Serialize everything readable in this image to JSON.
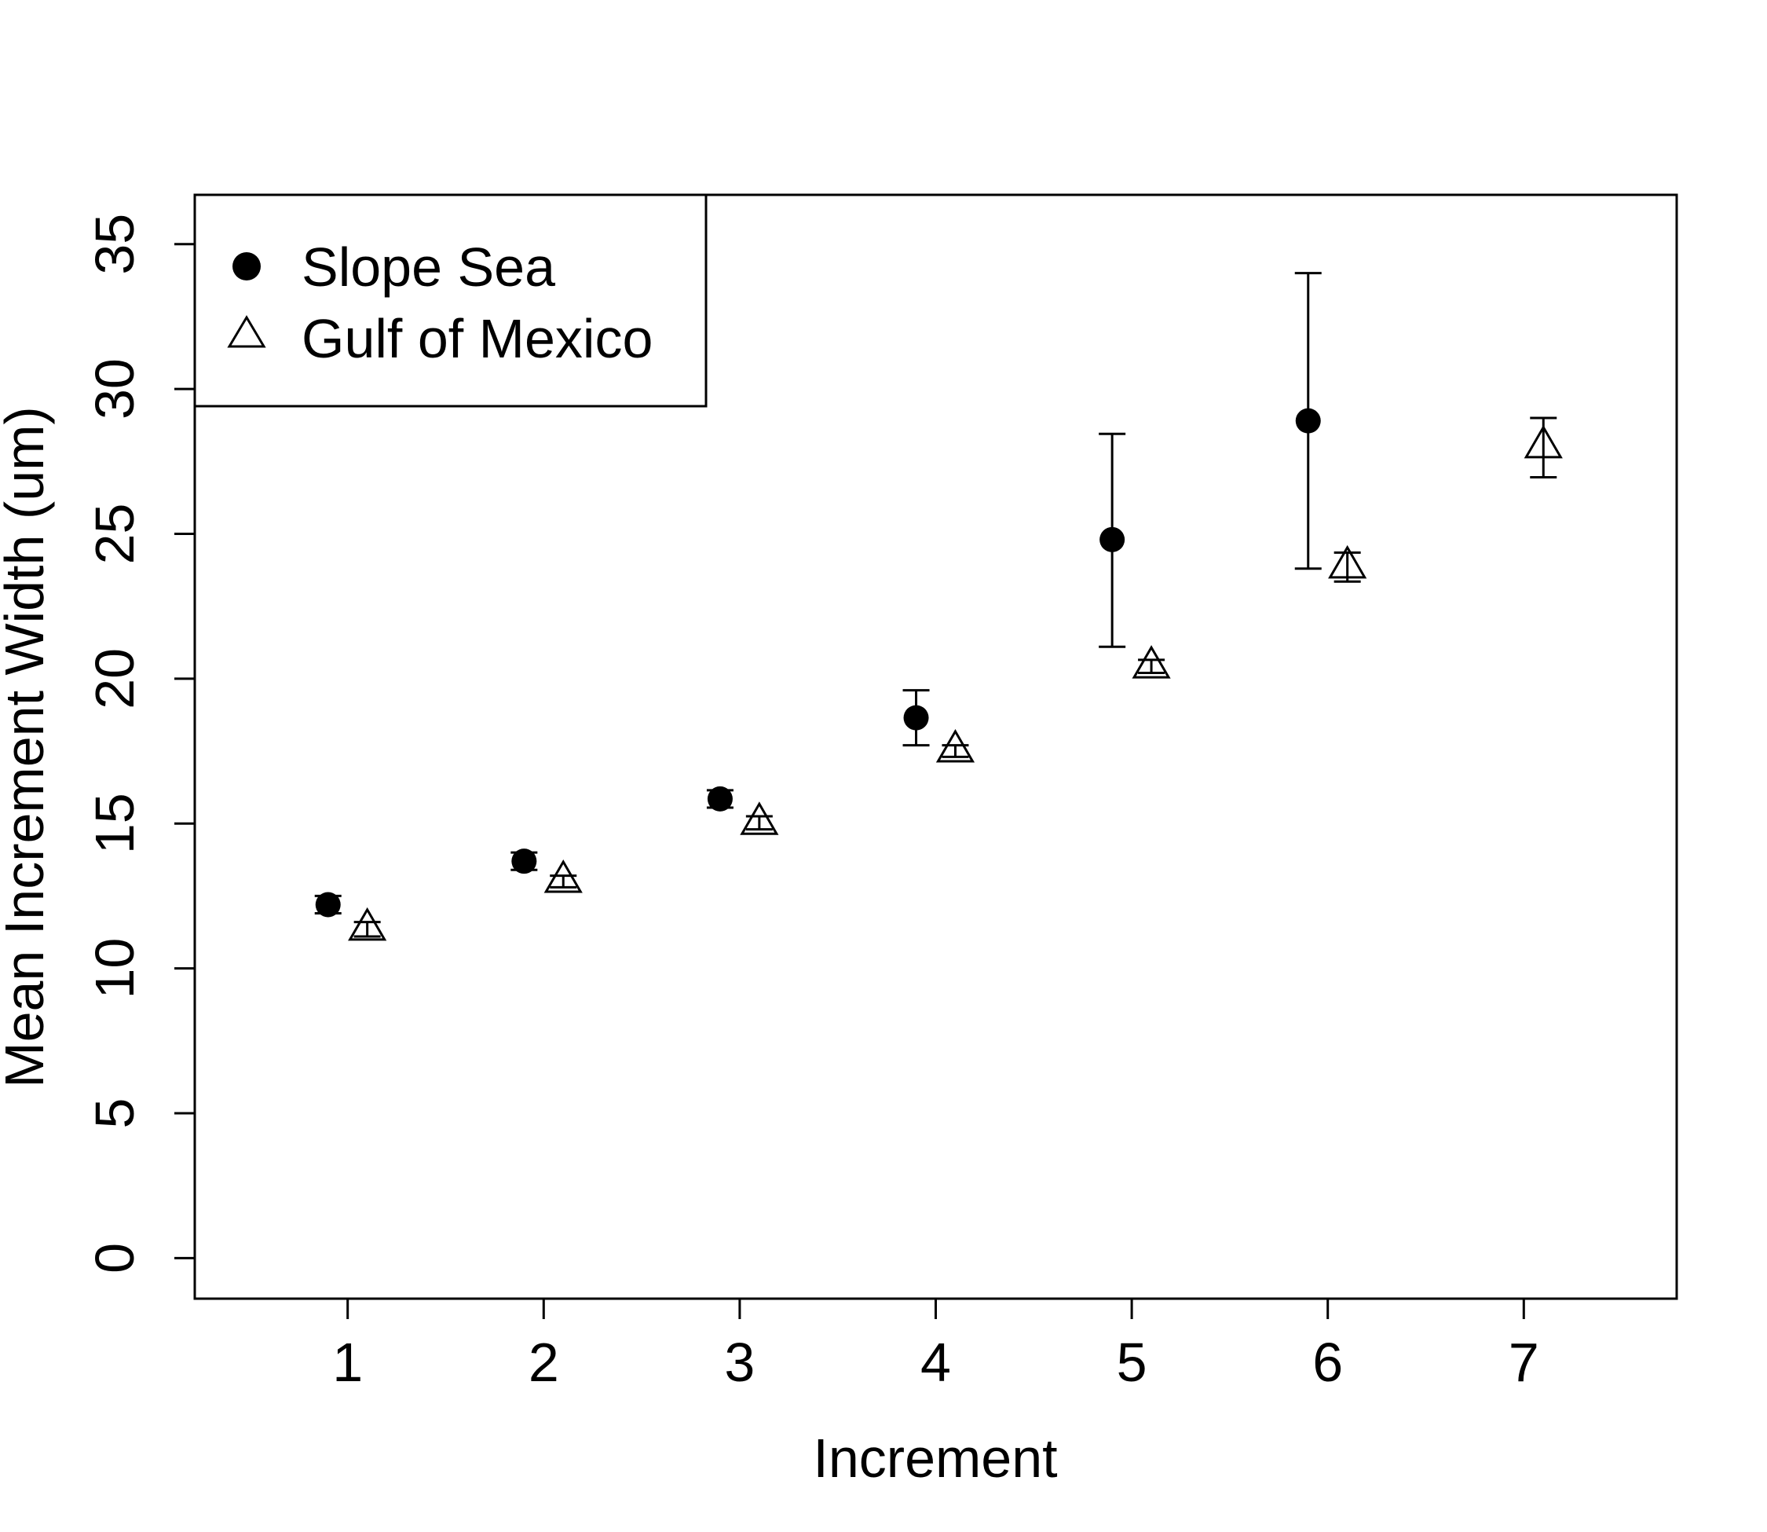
{
  "chart_data": {
    "type": "scatter",
    "title": "",
    "xlabel": "Increment",
    "ylabel": "Mean Increment Width (um)",
    "xlim": [
      0.22,
      7.78
    ],
    "ylim": [
      -1.4,
      36.7
    ],
    "xticks": [
      1,
      2,
      3,
      4,
      5,
      6,
      7
    ],
    "xtick_labels": [
      "1",
      "2",
      "3",
      "4",
      "5",
      "6",
      "7"
    ],
    "yticks": [
      0,
      5,
      10,
      15,
      20,
      25,
      30,
      35
    ],
    "ytick_labels": [
      "0",
      "5",
      "10",
      "15",
      "20",
      "25",
      "30",
      "35"
    ],
    "grid": false,
    "legend_position": "top-left",
    "series": [
      {
        "name": "Slope Sea",
        "marker": "filled-circle",
        "color": "#000000",
        "points": [
          {
            "x": 0.9,
            "y": 12.2,
            "lo": 11.9,
            "hi": 12.5
          },
          {
            "x": 1.9,
            "y": 13.7,
            "lo": 13.4,
            "hi": 14.0
          },
          {
            "x": 2.9,
            "y": 15.85,
            "lo": 15.55,
            "hi": 16.15
          },
          {
            "x": 3.9,
            "y": 18.65,
            "lo": 17.7,
            "hi": 19.6
          },
          {
            "x": 4.9,
            "y": 24.8,
            "lo": 21.1,
            "hi": 28.45
          },
          {
            "x": 5.9,
            "y": 28.9,
            "lo": 23.8,
            "hi": 34.0
          }
        ]
      },
      {
        "name": "Gulf of Mexico",
        "marker": "open-triangle",
        "color": "#000000",
        "points": [
          {
            "x": 1.1,
            "y": 11.35,
            "lo": 11.1,
            "hi": 11.6
          },
          {
            "x": 2.1,
            "y": 13.0,
            "lo": 12.8,
            "hi": 13.2
          },
          {
            "x": 3.1,
            "y": 15.0,
            "lo": 14.8,
            "hi": 15.25
          },
          {
            "x": 4.1,
            "y": 17.5,
            "lo": 17.3,
            "hi": 17.7
          },
          {
            "x": 5.1,
            "y": 20.4,
            "lo": 20.2,
            "hi": 20.65
          },
          {
            "x": 6.1,
            "y": 23.85,
            "lo": 23.35,
            "hi": 24.35
          },
          {
            "x": 7.1,
            "y": 28.0,
            "lo": 26.95,
            "hi": 29.0
          }
        ]
      }
    ]
  }
}
